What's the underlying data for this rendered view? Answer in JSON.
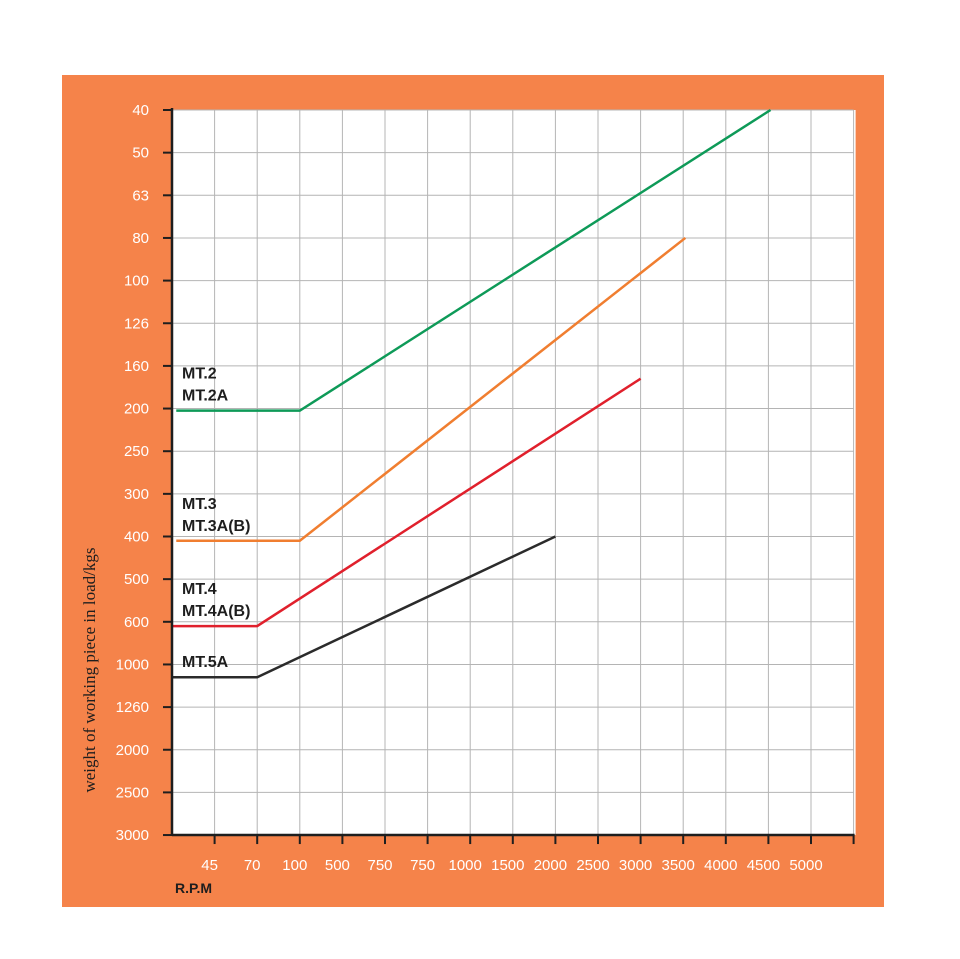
{
  "chart_data": {
    "type": "line",
    "title": "",
    "xlabel": "R.P.M",
    "ylabel": "weight of working piece in load/kgs",
    "x_tick_labels": [
      "45",
      "70",
      "100",
      "500",
      "750",
      "750",
      "1000",
      "1500",
      "2000",
      "2500",
      "3000",
      "3500",
      "4000",
      "4500",
      "5000"
    ],
    "y_tick_labels": [
      "40",
      "50",
      "63",
      "80",
      "100",
      "126",
      "160",
      "200",
      "250",
      "300",
      "400",
      "500",
      "600",
      "1000",
      "1260",
      "2000",
      "2500",
      "3000"
    ],
    "grid": true,
    "axis_note": "categorical x (tick index 0-16) and categorical y (tick index 0-17, 40 at top)",
    "series": [
      {
        "name": "MT.2 / MT.2A",
        "label_lines": [
          "MT.2",
          "MT.2A"
        ],
        "color": "#0e9a58",
        "points": [
          {
            "x": "start",
            "y": "200"
          },
          {
            "x": "100",
            "y": "200"
          },
          {
            "x": "4500",
            "y": "40"
          }
        ],
        "x_idx": [
          0.1,
          3,
          14.05
        ],
        "y_idx": [
          7.05,
          7.05,
          0
        ]
      },
      {
        "name": "MT.3 / MT.3A(B)",
        "label_lines": [
          "MT.3",
          "MT.3A(B)"
        ],
        "color": "#f07e30",
        "points": [
          {
            "x": "start",
            "y": "400"
          },
          {
            "x": "100",
            "y": "400"
          },
          {
            "x": "3500",
            "y": "80"
          }
        ],
        "x_idx": [
          0.1,
          3,
          12.05
        ],
        "y_idx": [
          10.1,
          10.1,
          3
        ]
      },
      {
        "name": "MT.4 / MT.4A(B)",
        "label_lines": [
          "MT.4",
          "MT.4A(B)"
        ],
        "color": "#e0202c",
        "points": [
          {
            "x": "start",
            "y": "600"
          },
          {
            "x": "70",
            "y": "600"
          },
          {
            "x": "3000",
            "y": "160"
          }
        ],
        "x_idx": [
          0,
          2,
          11
        ],
        "y_idx": [
          12.1,
          12.1,
          6.3
        ]
      },
      {
        "name": "MT.5A",
        "label_lines": [
          "MT.5A"
        ],
        "color": "#2b2b2b",
        "points": [
          {
            "x": "start",
            "y": "1000"
          },
          {
            "x": "70",
            "y": "1000"
          },
          {
            "x": "2000",
            "y": "400"
          }
        ],
        "x_idx": [
          0,
          2,
          9
        ],
        "y_idx": [
          13.3,
          13.3,
          10
        ]
      }
    ]
  }
}
